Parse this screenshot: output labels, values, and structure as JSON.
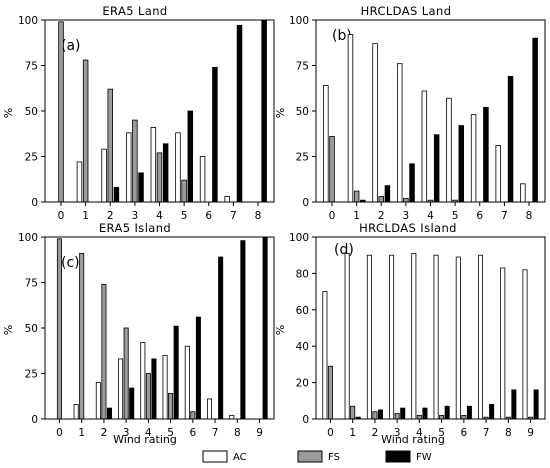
{
  "colors": {
    "AC": "#ffffff",
    "FS": "#9b9b9b",
    "FW": "#000000"
  },
  "legend": [
    "AC",
    "FS",
    "FW"
  ],
  "chart_data": [
    {
      "type": "bar",
      "title": "ERA5 Land",
      "tag": "(a)",
      "categories": [
        "0",
        "1",
        "2",
        "3",
        "4",
        "5",
        "6",
        "7",
        "8"
      ],
      "xlabel": "",
      "ylabel": "%",
      "ylim": [
        0,
        100
      ],
      "yticks": [
        "0",
        "25",
        "50",
        "75",
        "100"
      ],
      "series": [
        {
          "name": "AC",
          "values": [
            0,
            22,
            29,
            38,
            41,
            38,
            25,
            3,
            0
          ]
        },
        {
          "name": "FS",
          "values": [
            99,
            78,
            62,
            45,
            27,
            12,
            0,
            0,
            0
          ]
        },
        {
          "name": "FW",
          "values": [
            0,
            0,
            8,
            16,
            32,
            50,
            74,
            97,
            100
          ]
        }
      ]
    },
    {
      "type": "bar",
      "title": "HRCLDAS Land",
      "tag": "(b)",
      "categories": [
        "0",
        "1",
        "2",
        "3",
        "4",
        "5",
        "6",
        "7",
        "8"
      ],
      "xlabel": "",
      "ylabel": "%",
      "ylim": [
        0,
        100
      ],
      "yticks": [
        "0",
        "25",
        "50",
        "75",
        "100"
      ],
      "series": [
        {
          "name": "AC",
          "values": [
            64,
            92,
            87,
            76,
            61,
            57,
            48,
            31,
            10
          ]
        },
        {
          "name": "FS",
          "values": [
            36,
            6,
            3,
            2,
            1,
            1,
            0,
            0,
            0
          ]
        },
        {
          "name": "FW",
          "values": [
            0,
            1,
            9,
            21,
            37,
            42,
            52,
            69,
            90
          ]
        }
      ]
    },
    {
      "type": "bar",
      "title": "ERA5 Island",
      "tag": "(c)",
      "categories": [
        "0",
        "1",
        "2",
        "3",
        "4",
        "5",
        "6",
        "7",
        "8",
        "9"
      ],
      "xlabel": "Wind rating",
      "ylabel": "%",
      "ylim": [
        0,
        100
      ],
      "yticks": [
        "0",
        "25",
        "50",
        "75",
        "100"
      ],
      "series": [
        {
          "name": "AC",
          "values": [
            0,
            8,
            20,
            33,
            42,
            35,
            40,
            11,
            2,
            0
          ]
        },
        {
          "name": "FS",
          "values": [
            99,
            91,
            74,
            50,
            25,
            14,
            4,
            0,
            0,
            0
          ]
        },
        {
          "name": "FW",
          "values": [
            0,
            0,
            6,
            17,
            33,
            51,
            56,
            89,
            98,
            100
          ]
        }
      ]
    },
    {
      "type": "bar",
      "title": "HRCLDAS Island",
      "tag": "(d)",
      "categories": [
        "0",
        "1",
        "2",
        "3",
        "4",
        "5",
        "6",
        "7",
        "8",
        "9"
      ],
      "xlabel": "Wind rating",
      "ylabel": "%",
      "ylim": [
        0,
        100
      ],
      "yticks": [
        "0",
        "20",
        "40",
        "60",
        "80",
        "100"
      ],
      "series": [
        {
          "name": "AC",
          "values": [
            70,
            91,
            90,
            90,
            91,
            90,
            89,
            90,
            83,
            82
          ]
        },
        {
          "name": "FS",
          "values": [
            29,
            7,
            4,
            3,
            2,
            2,
            2,
            1,
            1,
            1
          ]
        },
        {
          "name": "FW",
          "values": [
            0,
            1,
            5,
            6,
            6,
            7,
            7,
            8,
            16,
            16
          ]
        }
      ]
    }
  ]
}
